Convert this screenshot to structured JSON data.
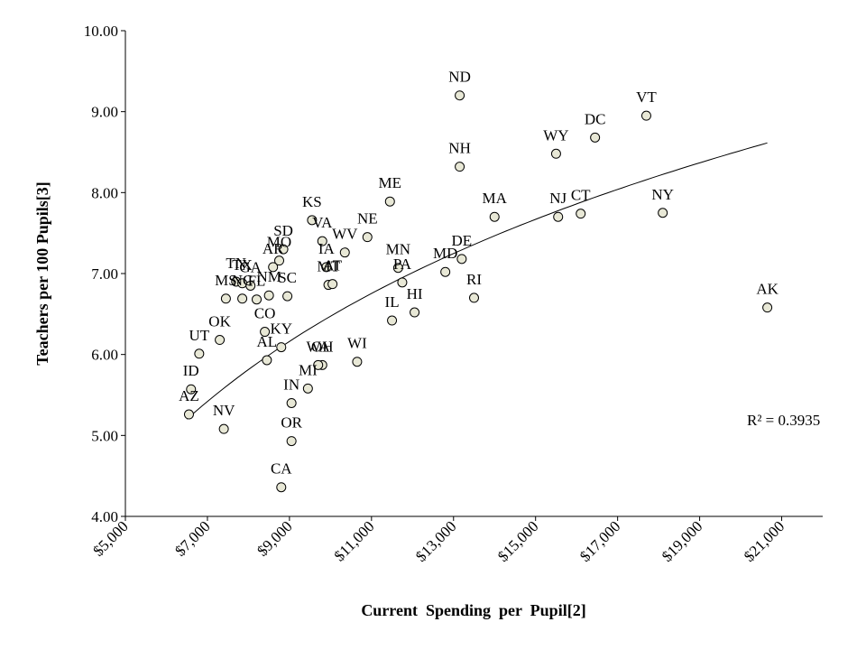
{
  "chart_data": {
    "type": "scatter",
    "title": "",
    "xlabel": "Current  Spending  per  Pupil[2]",
    "ylabel": "Teachers per 100 Pupils[3]",
    "xlim": [
      5000,
      22000
    ],
    "ylim": [
      4.0,
      10.0
    ],
    "x_ticks": [
      5000,
      7000,
      9000,
      11000,
      13000,
      15000,
      17000,
      19000,
      21000
    ],
    "x_tick_labels": [
      "$5,000",
      "$7,000",
      "$9,000",
      "$11,000",
      "$13,000",
      "$15,000",
      "$17,000",
      "$19,000",
      "$21,000"
    ],
    "y_ticks": [
      4,
      5,
      6,
      7,
      8,
      9,
      10
    ],
    "y_tick_labels": [
      "4.00",
      "5.00",
      "6.00",
      "7.00",
      "8.00",
      "9.00",
      "10.00"
    ],
    "trendline": {
      "type": "logarithmic",
      "a": -20.72,
      "b": 2.9524,
      "x_range": [
        6500,
        20650
      ]
    },
    "r_squared_label": "R² = 0.3935",
    "marker_color": "#e8e8d6",
    "marker_edge": "#000000",
    "points": [
      {
        "label": "ND",
        "x": 13150,
        "y": 9.2
      },
      {
        "label": "VT",
        "x": 17700,
        "y": 8.95
      },
      {
        "label": "DC",
        "x": 16450,
        "y": 8.68
      },
      {
        "label": "WY",
        "x": 15500,
        "y": 8.48
      },
      {
        "label": "NH",
        "x": 13150,
        "y": 8.32
      },
      {
        "label": "ME",
        "x": 11450,
        "y": 7.89
      },
      {
        "label": "MA",
        "x": 14000,
        "y": 7.7
      },
      {
        "label": "NJ",
        "x": 15550,
        "y": 7.7
      },
      {
        "label": "CT",
        "x": 16100,
        "y": 7.74
      },
      {
        "label": "NY",
        "x": 18100,
        "y": 7.75
      },
      {
        "label": "KS",
        "x": 9550,
        "y": 7.66
      },
      {
        "label": "NE",
        "x": 10900,
        "y": 7.45
      },
      {
        "label": "VA",
        "x": 9800,
        "y": 7.4
      },
      {
        "label": "SD",
        "x": 8850,
        "y": 7.3
      },
      {
        "label": "MO",
        "x": 8750,
        "y": 7.16
      },
      {
        "label": "AR",
        "x": 8600,
        "y": 7.08
      },
      {
        "label": "WV",
        "x": 10350,
        "y": 7.26
      },
      {
        "label": "IA",
        "x": 9900,
        "y": 7.08
      },
      {
        "label": "DE",
        "x": 13200,
        "y": 7.18
      },
      {
        "label": "MN",
        "x": 11650,
        "y": 7.07
      },
      {
        "label": "MD",
        "x": 12800,
        "y": 7.02
      },
      {
        "label": "PA",
        "x": 11750,
        "y": 6.89
      },
      {
        "label": "MT",
        "x": 9950,
        "y": 6.86
      },
      {
        "label": "AT",
        "x": 10050,
        "y": 6.87
      },
      {
        "label": "RI",
        "x": 13500,
        "y": 6.7
      },
      {
        "label": "AK",
        "x": 20650,
        "y": 6.58
      },
      {
        "label": "TN",
        "x": 7700,
        "y": 6.9
      },
      {
        "label": "TX",
        "x": 7850,
        "y": 6.88
      },
      {
        "label": "MS",
        "x": 7450,
        "y": 6.69
      },
      {
        "label": "NC",
        "x": 7850,
        "y": 6.69
      },
      {
        "label": "GA",
        "x": 8050,
        "y": 6.85
      },
      {
        "label": "FL",
        "x": 8200,
        "y": 6.68
      },
      {
        "label": "NM",
        "x": 8500,
        "y": 6.73
      },
      {
        "label": "SC",
        "x": 8950,
        "y": 6.72
      },
      {
        "label": "IL",
        "x": 11500,
        "y": 6.42
      },
      {
        "label": "HI",
        "x": 12050,
        "y": 6.52
      },
      {
        "label": "CO",
        "x": 8400,
        "y": 6.28
      },
      {
        "label": "OK",
        "x": 7300,
        "y": 6.18
      },
      {
        "label": "KY",
        "x": 8800,
        "y": 6.09
      },
      {
        "label": "UT",
        "x": 6800,
        "y": 6.01
      },
      {
        "label": "AL",
        "x": 8450,
        "y": 5.93
      },
      {
        "label": "WI",
        "x": 10650,
        "y": 5.91
      },
      {
        "label": "OH",
        "x": 9800,
        "y": 5.87
      },
      {
        "label": "WA",
        "x": 9700,
        "y": 5.87
      },
      {
        "label": "MI",
        "x": 9450,
        "y": 5.58
      },
      {
        "label": "ID",
        "x": 6600,
        "y": 5.57
      },
      {
        "label": "IN",
        "x": 9050,
        "y": 5.4
      },
      {
        "label": "AZ",
        "x": 6550,
        "y": 5.26
      },
      {
        "label": "NV",
        "x": 7400,
        "y": 5.08
      },
      {
        "label": "OR",
        "x": 9050,
        "y": 4.93
      },
      {
        "label": "CA",
        "x": 8800,
        "y": 4.36
      }
    ]
  }
}
